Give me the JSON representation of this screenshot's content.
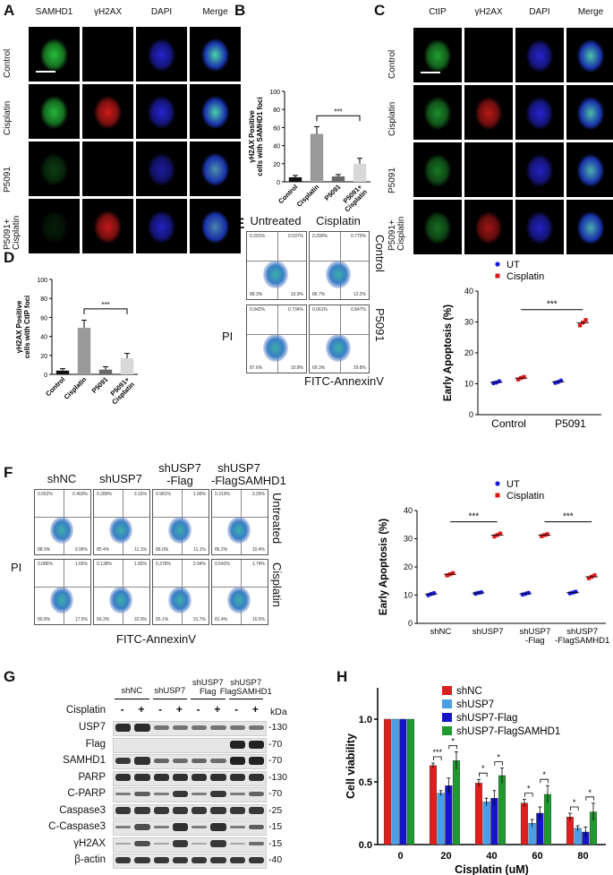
{
  "panels": {
    "A": "A",
    "B": "B",
    "C": "C",
    "D": "D",
    "E": "E",
    "F": "F",
    "G": "G",
    "H": "H"
  },
  "panelA": {
    "channels": [
      "SAMHD1",
      "γH2AX",
      "DAPI",
      "Merge"
    ],
    "rows": [
      "Control",
      "Cisplatin",
      "P5091",
      "P5091+\nCisplatin"
    ]
  },
  "panelC": {
    "channels": [
      "CtIP",
      "γH2AX",
      "DAPI",
      "Merge"
    ],
    "rows": [
      "Control",
      "Cisplatin",
      "P5091",
      "P5091+\nCisplatin"
    ]
  },
  "panelB": {
    "chart_data": {
      "type": "bar",
      "categories": [
        "Control",
        "Cisplatin",
        "P5091",
        "P5091+\nCisplatin"
      ],
      "values": [
        5,
        53,
        6,
        20
      ],
      "errors": [
        2,
        8,
        2,
        6
      ],
      "ylabel": "γH2AX Positive\ncells with SAMHD1 foci",
      "ylim": [
        0,
        100
      ],
      "ticks": [
        0,
        20,
        40,
        60,
        80,
        100
      ],
      "significance": "***",
      "colors": [
        "#111111",
        "#9a9a9a",
        "#6a6a6a",
        "#d8d8d8"
      ]
    }
  },
  "panelD": {
    "chart_data": {
      "type": "bar",
      "categories": [
        "Control",
        "Cisplatin",
        "P5091",
        "P5091+\nCisplatin"
      ],
      "values": [
        4,
        49,
        5,
        17
      ],
      "errors": [
        2,
        8,
        3,
        5
      ],
      "ylabel": "γH2AX Positive\ncells with CtIP foci",
      "ylim": [
        0,
        100
      ],
      "ticks": [
        0,
        20,
        40,
        60,
        80,
        100
      ],
      "significance": "***",
      "colors": [
        "#111111",
        "#9a9a9a",
        "#6a6a6a",
        "#d8d8d8"
      ]
    }
  },
  "panelE": {
    "cols": [
      "Untreated",
      "Cisplatin"
    ],
    "rows": [
      "Control",
      "P5091"
    ],
    "xlabel": "FITC-AnnexinV",
    "ylabel": "PI",
    "quadrants": [
      [
        "0.291%",
        "0.537%",
        "88.3%",
        "10.9%"
      ],
      [
        "0.290%",
        "0.770%",
        "86.7%",
        "12.2%"
      ],
      [
        "0.942%",
        "0.734%",
        "87.6%",
        "10.8%"
      ],
      [
        "0.061%",
        "0.847%",
        "69.3%",
        "29.8%"
      ]
    ],
    "chart_data": {
      "type": "scatter",
      "categories": [
        "Control",
        "P5091"
      ],
      "series": [
        {
          "name": "UT",
          "values": [
            [
              10.2,
              10.4,
              10.8
            ],
            [
              10.3,
              10.6,
              11.0
            ]
          ]
        },
        {
          "name": "Cisplatin",
          "values": [
            [
              11.4,
              11.9,
              12.2
            ],
            [
              28.9,
              29.8,
              30.6
            ]
          ]
        }
      ],
      "ylabel": "Early Apoptosis (%)",
      "ylim": [
        0,
        40
      ],
      "ticks": [
        0,
        10,
        20,
        30,
        40
      ],
      "significance": "***",
      "colors": [
        "#1a1ad6",
        "#d61a1a"
      ]
    }
  },
  "panelF": {
    "cols": [
      "shNC",
      "shUSP7",
      "shUSP7\n-Flag",
      "shUSP7\n-FlagSAMHD1"
    ],
    "rows": [
      "Untreated",
      "Cisplatin"
    ],
    "xlabel": "FITC-AnnexinV",
    "ylabel": "PI",
    "quadrants": [
      [
        "0.052%",
        "0.403%",
        "88.9%",
        "9.95%"
      ],
      [
        "0.289%",
        "3.15%",
        "85.4%",
        "11.1%"
      ],
      [
        "0.981%",
        "1.99%",
        "86.0%",
        "11.1%"
      ],
      [
        "0.319%",
        "3.25%",
        "86.2%",
        "10.4%"
      ],
      [
        "0.086%",
        "1.65%",
        "80.8%",
        "17.5%"
      ],
      [
        "0.138%",
        "1.65%",
        "66.3%",
        "32.0%"
      ],
      [
        "0.378%",
        "2.94%",
        "65.1%",
        "31.7%"
      ],
      [
        "0.542%",
        "1.74%",
        "81.4%",
        "16.5%"
      ]
    ],
    "chart_data": {
      "type": "scatter",
      "categories": [
        "shNC",
        "shUSP7",
        "shUSP7\n-Flag",
        "shUSP7\n-FlagSAMHD1"
      ],
      "series": [
        {
          "name": "UT",
          "values": [
            [
              10.0,
              10.4,
              10.7
            ],
            [
              10.5,
              10.8,
              11.0
            ],
            [
              10.2,
              10.5,
              10.8
            ],
            [
              10.6,
              10.9,
              11.2
            ]
          ]
        },
        {
          "name": "Cisplatin",
          "values": [
            [
              17.0,
              17.4,
              17.8
            ],
            [
              30.8,
              31.3,
              31.8
            ],
            [
              30.9,
              31.3,
              31.6
            ],
            [
              16.0,
              16.5,
              17.0
            ]
          ]
        }
      ],
      "ylabel": "Early Apoptosis (%)",
      "ylim": [
        0,
        40
      ],
      "ticks": [
        0,
        10,
        20,
        30,
        40
      ],
      "significance": [
        "***",
        "***"
      ],
      "colors": [
        "#1a1ad6",
        "#d61a1a"
      ]
    }
  },
  "panelG": {
    "groups": [
      "shNC",
      "shUSP7",
      "shUSP7\nFlag",
      "shUSP7\nFlagSAMHD1"
    ],
    "treatment_label": "Cisplatin",
    "treatment": [
      "-",
      "+",
      "-",
      "+",
      "-",
      "+",
      "-",
      "+"
    ],
    "kda": "kDa",
    "blots": [
      {
        "label": "USP7",
        "marker": "-130",
        "bands": [
          0.95,
          0.95,
          0.45,
          0.45,
          0.45,
          0.45,
          0.45,
          0.45
        ]
      },
      {
        "label": "Flag",
        "marker": "-70",
        "bands": [
          0,
          0,
          0,
          0,
          0,
          0,
          1,
          1
        ]
      },
      {
        "label": "SAMHD1",
        "marker": "-70",
        "bands": [
          0.85,
          0.9,
          0.55,
          0.5,
          0.55,
          0.5,
          1,
          1
        ]
      },
      {
        "label": "PARP",
        "marker": "-130",
        "bands": [
          0.9,
          0.9,
          0.9,
          0.9,
          0.9,
          0.9,
          0.9,
          0.9
        ]
      },
      {
        "label": "C-PARP",
        "marker": "-70",
        "bands": [
          0.4,
          0.6,
          0.4,
          0.85,
          0.4,
          0.85,
          0.4,
          0.55
        ]
      },
      {
        "label": "Caspase3",
        "marker": "-25",
        "bands": [
          0.85,
          0.85,
          0.85,
          0.85,
          0.85,
          0.85,
          0.85,
          0.85
        ]
      },
      {
        "label": "C-Caspase3",
        "marker": "-15",
        "bands": [
          0.4,
          0.7,
          0.4,
          0.9,
          0.4,
          0.9,
          0.4,
          0.6
        ]
      },
      {
        "label": "γH2AX",
        "marker": "-15",
        "bands": [
          0.1,
          0.7,
          0.1,
          0.85,
          0.1,
          0.85,
          0.1,
          0.5
        ]
      },
      {
        "label": "β-actin",
        "marker": "-40",
        "bands": [
          0.85,
          0.85,
          0.85,
          0.85,
          0.85,
          0.85,
          0.85,
          0.85
        ]
      }
    ]
  },
  "panelH": {
    "chart_data": {
      "type": "bar",
      "categories": [
        "0",
        "20",
        "40",
        "60",
        "80"
      ],
      "series": [
        {
          "name": "shNC",
          "values": [
            1.0,
            0.63,
            0.49,
            0.33,
            0.22
          ],
          "errors": [
            0,
            0.02,
            0.03,
            0.03,
            0.03
          ]
        },
        {
          "name": "shUSP7",
          "values": [
            1.0,
            0.41,
            0.34,
            0.17,
            0.13
          ],
          "errors": [
            0,
            0.02,
            0.03,
            0.03,
            0.02
          ]
        },
        {
          "name": "shUSP7-Flag",
          "values": [
            1.0,
            0.47,
            0.37,
            0.25,
            0.1
          ],
          "errors": [
            0,
            0.06,
            0.06,
            0.05,
            0.04
          ]
        },
        {
          "name": "shUSP7-FlagSAMHD1",
          "values": [
            1.0,
            0.67,
            0.55,
            0.4,
            0.26
          ],
          "errors": [
            0,
            0.07,
            0.06,
            0.07,
            0.07
          ]
        }
      ],
      "xlabel": "Cisplatin (uM)",
      "ylabel": "Cell viability",
      "ylim": [
        0,
        1.25
      ],
      "ticks": [
        "0.0",
        "0.5",
        "1.0"
      ],
      "significance": [
        "***",
        "*",
        "*",
        "*",
        "*",
        "*",
        "*",
        "*"
      ],
      "colors": [
        "#e01e1e",
        "#4a9ee6",
        "#1414c8",
        "#1f9a2e"
      ]
    }
  }
}
